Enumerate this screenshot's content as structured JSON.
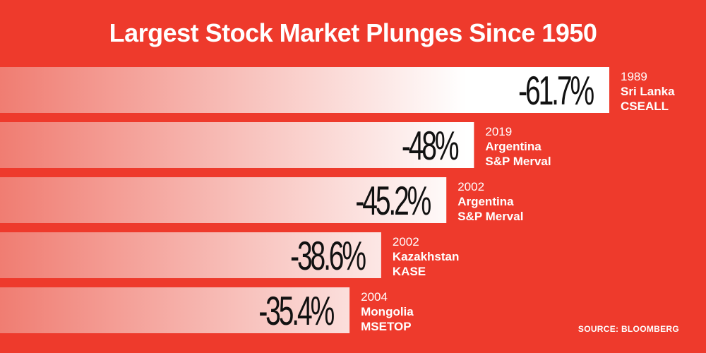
{
  "title": "Largest Stock Market Plunges Since 1950",
  "source": "SOURCE: BLOOMBERG",
  "colors": {
    "background": "#ee3a2c",
    "bar_start": "#f07d72",
    "bar_end": "#ffffff",
    "value_text": "#111111",
    "label_text": "#ffffff"
  },
  "chart_data": {
    "type": "bar",
    "orientation": "horizontal",
    "title": "Largest Stock Market Plunges Since 1950",
    "categories": [
      "1989 Sri Lanka CSEALL",
      "2019 Argentina S&P Merval",
      "2002 Argentina S&P Merval",
      "2002 Kazakhstan KASE",
      "2004 Mongolia MSETOP"
    ],
    "values": [
      -61.7,
      -48,
      -45.2,
      -38.6,
      -35.4
    ],
    "bars": [
      {
        "value": -61.7,
        "value_label": "-61.7%",
        "year": "1989",
        "country": "Sri Lanka",
        "index": "CSEALL"
      },
      {
        "value": -48,
        "value_label": "-48%",
        "year": "2019",
        "country": "Argentina",
        "index": "S&P Merval"
      },
      {
        "value": -45.2,
        "value_label": "-45.2%",
        "year": "2002",
        "country": "Argentina",
        "index": "S&P Merval"
      },
      {
        "value": -38.6,
        "value_label": "-38.6%",
        "year": "2002",
        "country": "Kazakhstan",
        "index": "KASE"
      },
      {
        "value": -35.4,
        "value_label": "-35.4%",
        "year": "2004",
        "country": "Mongolia",
        "index": "MSETOP"
      }
    ],
    "grid": false,
    "legend": "none",
    "source": "SOURCE: BLOOMBERG"
  }
}
